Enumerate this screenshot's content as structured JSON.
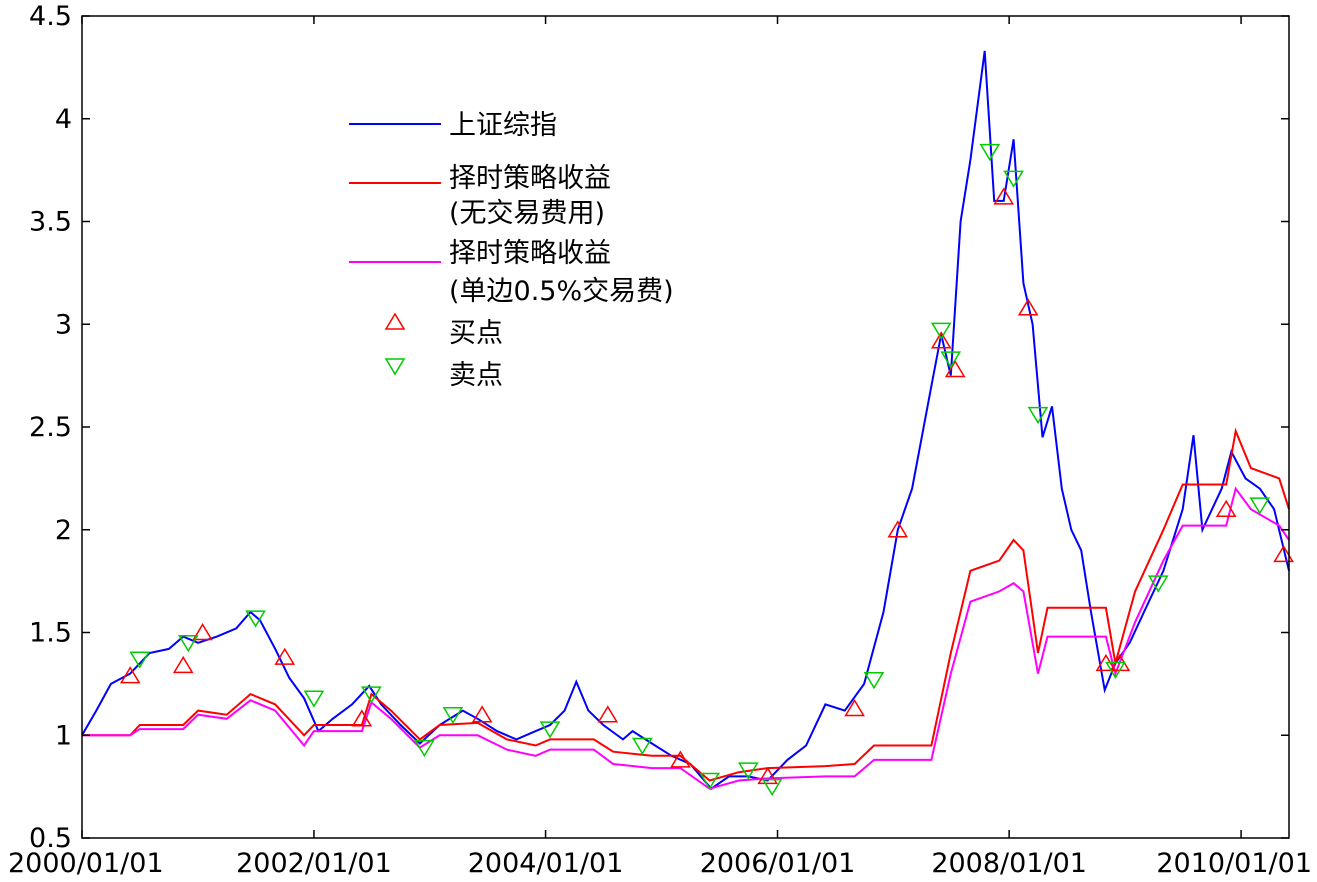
{
  "chart_data": {
    "type": "line",
    "title": "",
    "xlabel": "",
    "ylabel": "",
    "ylim": [
      0.5,
      4.5
    ],
    "xlim": [
      "2000/01/01",
      "2010/06/01"
    ],
    "grid": false,
    "legend_position": "top-left",
    "x_tick_labels": [
      "2000/01/01",
      "2002/01/01",
      "2004/01/01",
      "2006/01/01",
      "2008/01/01",
      "2010/01/01"
    ],
    "y_tick_labels": [
      "0.5",
      "1",
      "1.5",
      "2",
      "2.5",
      "3",
      "3.5",
      "4",
      "4.5"
    ],
    "y_tick_values": [
      0.5,
      1,
      1.5,
      2,
      2.5,
      3,
      3.5,
      4,
      4.5
    ],
    "legend": [
      {
        "key": "index",
        "lines": [
          "上证综指"
        ],
        "color": "#0000ff",
        "marker": "line"
      },
      {
        "key": "strategy",
        "lines": [
          "择时策略收益",
          "(无交易费用)"
        ],
        "color": "#ff0000",
        "marker": "line"
      },
      {
        "key": "strategy_fee",
        "lines": [
          "择时策略收益",
          "(单边0.5%交易费)"
        ],
        "color": "#ff00ff",
        "marker": "line"
      },
      {
        "key": "buy",
        "lines": [
          "买点"
        ],
        "color": "#ff0000",
        "marker": "triangle-up"
      },
      {
        "key": "sell",
        "lines": [
          "卖点"
        ],
        "color": "#00cc00",
        "marker": "triangle-down"
      }
    ],
    "series": [
      {
        "key": "index",
        "color": "#0000ff",
        "points": [
          [
            "2000/01/01",
            1.0
          ],
          [
            "2000/02/15",
            1.12
          ],
          [
            "2000/04/01",
            1.25
          ],
          [
            "2000/06/01",
            1.3
          ],
          [
            "2000/08/01",
            1.4
          ],
          [
            "2000/10/01",
            1.42
          ],
          [
            "2000/11/15",
            1.48
          ],
          [
            "2001/01/01",
            1.45
          ],
          [
            "2001/03/01",
            1.48
          ],
          [
            "2001/05/01",
            1.52
          ],
          [
            "2001/06/15",
            1.6
          ],
          [
            "2001/07/15",
            1.56
          ],
          [
            "2001/09/01",
            1.42
          ],
          [
            "2001/10/15",
            1.28
          ],
          [
            "2001/12/01",
            1.18
          ],
          [
            "2002/01/15",
            1.02
          ],
          [
            "2002/03/01",
            1.08
          ],
          [
            "2002/05/01",
            1.15
          ],
          [
            "2002/06/24",
            1.24
          ],
          [
            "2002/08/01",
            1.15
          ],
          [
            "2002/10/01",
            1.05
          ],
          [
            "2002/12/01",
            0.96
          ],
          [
            "2003/02/01",
            1.05
          ],
          [
            "2003/04/15",
            1.12
          ],
          [
            "2003/06/01",
            1.08
          ],
          [
            "2003/08/01",
            1.02
          ],
          [
            "2003/10/01",
            0.98
          ],
          [
            "2003/12/01",
            1.02
          ],
          [
            "2004/01/15",
            1.05
          ],
          [
            "2004/03/01",
            1.12
          ],
          [
            "2004/04/07",
            1.26
          ],
          [
            "2004/05/15",
            1.12
          ],
          [
            "2004/07/01",
            1.05
          ],
          [
            "2004/09/01",
            0.98
          ],
          [
            "2004/10/01",
            1.02
          ],
          [
            "2004/12/01",
            0.96
          ],
          [
            "2005/02/01",
            0.9
          ],
          [
            "2005/04/01",
            0.86
          ],
          [
            "2005/06/06",
            0.74
          ],
          [
            "2005/08/01",
            0.8
          ],
          [
            "2005/10/01",
            0.8
          ],
          [
            "2005/12/01",
            0.78
          ],
          [
            "2006/02/01",
            0.88
          ],
          [
            "2006/04/01",
            0.95
          ],
          [
            "2006/06/01",
            1.15
          ],
          [
            "2006/08/01",
            1.12
          ],
          [
            "2006/10/01",
            1.25
          ],
          [
            "2006/12/01",
            1.6
          ],
          [
            "2007/01/15",
            2.0
          ],
          [
            "2007/03/01",
            2.2
          ],
          [
            "2007/05/01",
            2.7
          ],
          [
            "2007/06/01",
            2.95
          ],
          [
            "2007/07/01",
            2.75
          ],
          [
            "2007/08/01",
            3.5
          ],
          [
            "2007/09/01",
            3.8
          ],
          [
            "2007/10/16",
            4.33
          ],
          [
            "2007/11/15",
            3.6
          ],
          [
            "2007/12/15",
            3.6
          ],
          [
            "2008/01/15",
            3.9
          ],
          [
            "2008/02/15",
            3.2
          ],
          [
            "2008/03/15",
            3.0
          ],
          [
            "2008/04/15",
            2.45
          ],
          [
            "2008/05/15",
            2.6
          ],
          [
            "2008/06/15",
            2.2
          ],
          [
            "2008/07/15",
            2.0
          ],
          [
            "2008/08/15",
            1.9
          ],
          [
            "2008/09/15",
            1.6
          ],
          [
            "2008/10/28",
            1.22
          ],
          [
            "2008/12/01",
            1.35
          ],
          [
            "2009/01/15",
            1.45
          ],
          [
            "2009/03/01",
            1.6
          ],
          [
            "2009/05/01",
            1.8
          ],
          [
            "2009/07/01",
            2.1
          ],
          [
            "2009/08/04",
            2.46
          ],
          [
            "2009/09/01",
            2.0
          ],
          [
            "2009/11/01",
            2.2
          ],
          [
            "2009/12/01",
            2.38
          ],
          [
            "2010/01/15",
            2.25
          ],
          [
            "2010/03/01",
            2.2
          ],
          [
            "2010/04/15",
            2.1
          ],
          [
            "2010/06/01",
            1.8
          ]
        ]
      },
      {
        "key": "strategy",
        "color": "#ff0000",
        "points": [
          [
            "2000/01/01",
            1.0
          ],
          [
            "2000/06/01",
            1.0
          ],
          [
            "2000/07/01",
            1.05
          ],
          [
            "2000/11/15",
            1.05
          ],
          [
            "2001/01/01",
            1.12
          ],
          [
            "2001/04/01",
            1.1
          ],
          [
            "2001/06/15",
            1.2
          ],
          [
            "2001/09/01",
            1.15
          ],
          [
            "2001/12/01",
            1.0
          ],
          [
            "2002/01/01",
            1.05
          ],
          [
            "2002/06/01",
            1.05
          ],
          [
            "2002/07/01",
            1.2
          ],
          [
            "2002/09/01",
            1.12
          ],
          [
            "2002/12/01",
            0.98
          ],
          [
            "2003/02/01",
            1.05
          ],
          [
            "2003/06/01",
            1.06
          ],
          [
            "2003/09/01",
            0.98
          ],
          [
            "2003/12/01",
            0.95
          ],
          [
            "2004/01/15",
            0.98
          ],
          [
            "2004/06/01",
            0.98
          ],
          [
            "2004/08/01",
            0.92
          ],
          [
            "2004/12/01",
            0.9
          ],
          [
            "2005/03/01",
            0.9
          ],
          [
            "2005/06/01",
            0.78
          ],
          [
            "2005/09/01",
            0.82
          ],
          [
            "2005/12/01",
            0.84
          ],
          [
            "2006/06/01",
            0.85
          ],
          [
            "2006/09/01",
            0.86
          ],
          [
            "2006/11/01",
            0.95
          ],
          [
            "2007/05/01",
            0.95
          ],
          [
            "2007/07/01",
            1.4
          ],
          [
            "2007/09/01",
            1.8
          ],
          [
            "2007/12/01",
            1.85
          ],
          [
            "2008/01/15",
            1.95
          ],
          [
            "2008/02/15",
            1.9
          ],
          [
            "2008/04/01",
            1.4
          ],
          [
            "2008/05/01",
            1.62
          ],
          [
            "2008/11/01",
            1.62
          ],
          [
            "2008/12/01",
            1.35
          ],
          [
            "2009/02/01",
            1.7
          ],
          [
            "2009/05/01",
            2.0
          ],
          [
            "2009/07/01",
            2.22
          ],
          [
            "2009/11/15",
            2.22
          ],
          [
            "2009/12/15",
            2.48
          ],
          [
            "2010/02/01",
            2.3
          ],
          [
            "2010/05/01",
            2.25
          ],
          [
            "2010/06/01",
            2.1
          ]
        ]
      },
      {
        "key": "strategy_fee",
        "color": "#ff00ff",
        "points": [
          [
            "2000/01/01",
            1.0
          ],
          [
            "2000/06/01",
            1.0
          ],
          [
            "2000/07/01",
            1.03
          ],
          [
            "2000/11/15",
            1.03
          ],
          [
            "2001/01/01",
            1.1
          ],
          [
            "2001/04/01",
            1.08
          ],
          [
            "2001/06/15",
            1.17
          ],
          [
            "2001/09/01",
            1.12
          ],
          [
            "2001/12/01",
            0.95
          ],
          [
            "2002/01/01",
            1.02
          ],
          [
            "2002/06/01",
            1.02
          ],
          [
            "2002/07/01",
            1.16
          ],
          [
            "2002/09/01",
            1.08
          ],
          [
            "2002/12/01",
            0.94
          ],
          [
            "2003/02/01",
            1.0
          ],
          [
            "2003/06/01",
            1.0
          ],
          [
            "2003/09/01",
            0.93
          ],
          [
            "2003/12/01",
            0.9
          ],
          [
            "2004/01/15",
            0.93
          ],
          [
            "2004/06/01",
            0.93
          ],
          [
            "2004/08/01",
            0.86
          ],
          [
            "2004/12/01",
            0.84
          ],
          [
            "2005/03/01",
            0.84
          ],
          [
            "2005/06/01",
            0.74
          ],
          [
            "2005/09/01",
            0.78
          ],
          [
            "2005/12/01",
            0.79
          ],
          [
            "2006/06/01",
            0.8
          ],
          [
            "2006/09/01",
            0.8
          ],
          [
            "2006/11/01",
            0.88
          ],
          [
            "2007/05/01",
            0.88
          ],
          [
            "2007/07/01",
            1.3
          ],
          [
            "2007/09/01",
            1.65
          ],
          [
            "2007/12/01",
            1.7
          ],
          [
            "2008/01/15",
            1.74
          ],
          [
            "2008/02/15",
            1.7
          ],
          [
            "2008/04/01",
            1.3
          ],
          [
            "2008/05/01",
            1.48
          ],
          [
            "2008/11/01",
            1.48
          ],
          [
            "2008/12/01",
            1.3
          ],
          [
            "2009/02/01",
            1.55
          ],
          [
            "2009/05/01",
            1.85
          ],
          [
            "2009/07/01",
            2.02
          ],
          [
            "2009/11/15",
            2.02
          ],
          [
            "2009/12/15",
            2.2
          ],
          [
            "2010/02/01",
            2.1
          ],
          [
            "2010/05/01",
            2.02
          ],
          [
            "2010/06/01",
            1.95
          ]
        ]
      }
    ],
    "buy_points": [
      [
        "2000/06/01",
        1.29
      ],
      [
        "2000/11/15",
        1.34
      ],
      [
        "2001/01/15",
        1.5
      ],
      [
        "2001/10/01",
        1.38
      ],
      [
        "2002/06/01",
        1.08
      ],
      [
        "2003/06/15",
        1.1
      ],
      [
        "2004/07/15",
        1.1
      ],
      [
        "2005/03/01",
        0.88
      ],
      [
        "2005/12/01",
        0.8
      ],
      [
        "2006/09/01",
        1.13
      ],
      [
        "2007/01/15",
        2.0
      ],
      [
        "2007/06/01",
        2.92
      ],
      [
        "2007/07/15",
        2.78
      ],
      [
        "2007/12/15",
        3.62
      ],
      [
        "2008/03/01",
        3.08
      ],
      [
        "2008/11/01",
        1.35
      ],
      [
        "2008/12/15",
        1.35
      ],
      [
        "2009/11/15",
        2.1
      ],
      [
        "2010/05/15",
        1.88
      ]
    ],
    "sell_points": [
      [
        "2000/07/01",
        1.37
      ],
      [
        "2000/12/01",
        1.45
      ],
      [
        "2001/07/01",
        1.57
      ],
      [
        "2002/01/01",
        1.18
      ],
      [
        "2002/07/01",
        1.2
      ],
      [
        "2002/12/15",
        0.94
      ],
      [
        "2003/03/15",
        1.1
      ],
      [
        "2004/01/15",
        1.03
      ],
      [
        "2004/11/01",
        0.95
      ],
      [
        "2005/06/01",
        0.78
      ],
      [
        "2005/10/01",
        0.83
      ],
      [
        "2005/12/15",
        0.75
      ],
      [
        "2006/11/01",
        1.27
      ],
      [
        "2007/06/01",
        2.97
      ],
      [
        "2007/07/01",
        2.83
      ],
      [
        "2007/11/01",
        3.84
      ],
      [
        "2008/01/15",
        3.71
      ],
      [
        "2008/04/01",
        2.56
      ],
      [
        "2008/12/01",
        1.32
      ],
      [
        "2009/04/15",
        1.74
      ],
      [
        "2010/03/01",
        2.12
      ]
    ]
  }
}
